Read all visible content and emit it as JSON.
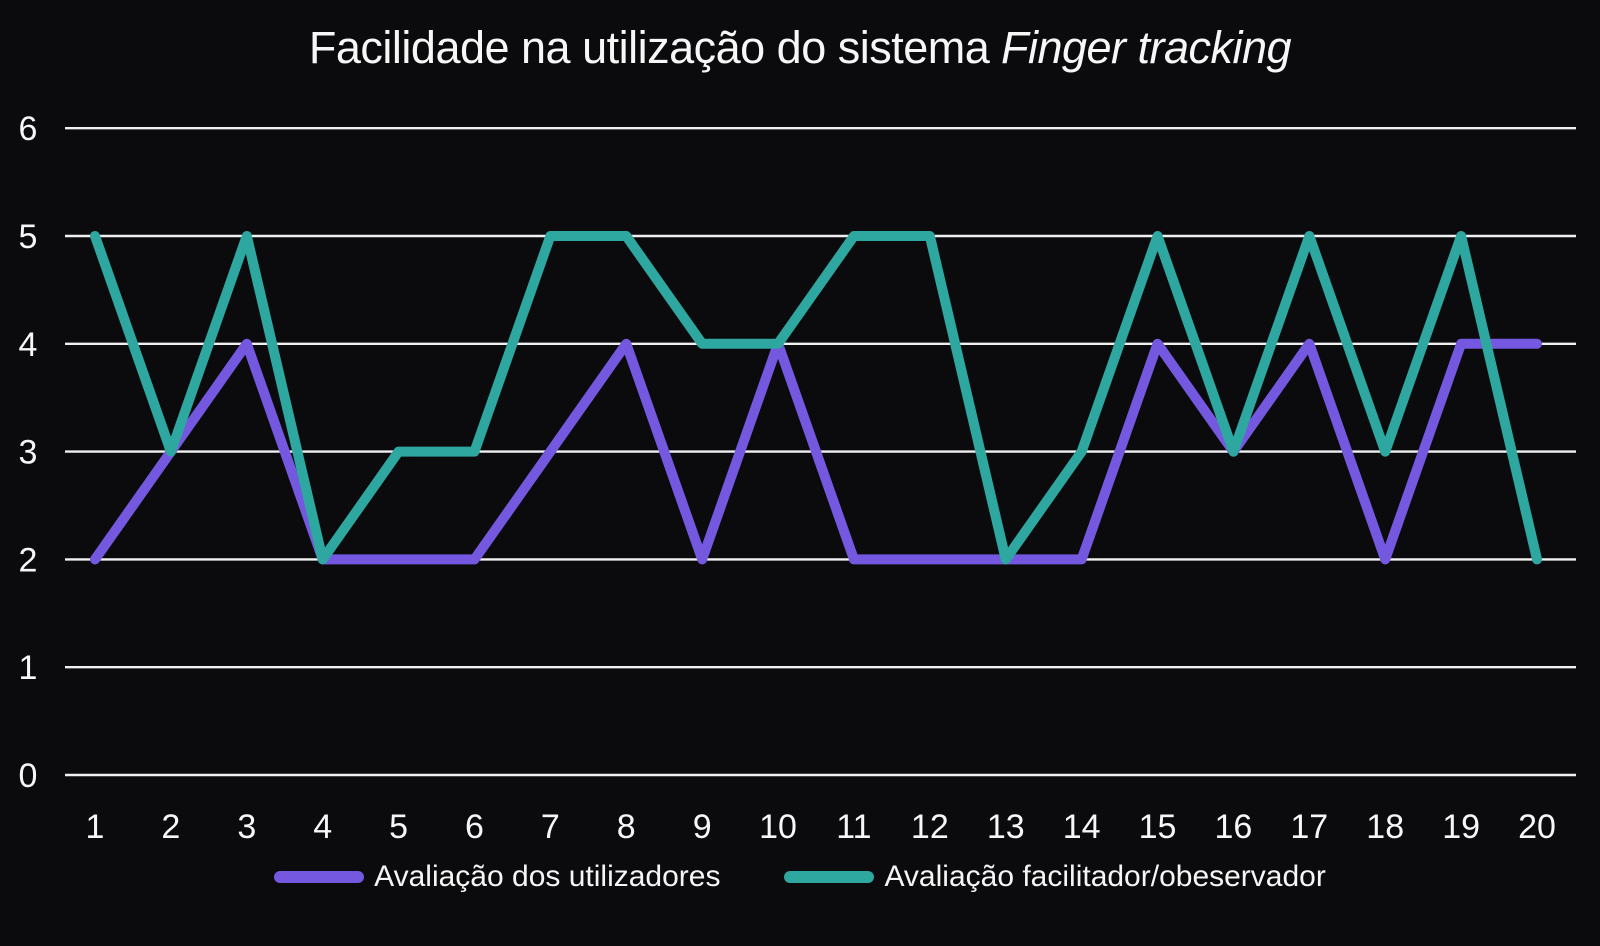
{
  "title": {
    "normal": "Facilidade na utilização do sistema",
    "italic": "Finger tracking"
  },
  "colors": {
    "background": "#0b0b0d",
    "gridline": "#f0f0f0",
    "text": "#f7f7f7",
    "series_purple": "#7458df",
    "series_teal": "#2ea7a1"
  },
  "chart_data": {
    "type": "line",
    "title": "Facilidade na utilização do sistema Finger tracking",
    "categories": [
      "1",
      "2",
      "3",
      "4",
      "5",
      "6",
      "7",
      "8",
      "9",
      "10",
      "11",
      "12",
      "13",
      "14",
      "15",
      "16",
      "17",
      "18",
      "19",
      "20"
    ],
    "series": [
      {
        "name": "Avaliação dos utilizadores",
        "color": "#7458df",
        "values": [
          2,
          3,
          4,
          2,
          2,
          2,
          3,
          4,
          2,
          4,
          2,
          2,
          2,
          2,
          4,
          3,
          4,
          2,
          4,
          4
        ]
      },
      {
        "name": "Avaliação facilitador/obeservador",
        "color": "#2ea7a1",
        "values": [
          5,
          3,
          5,
          2,
          3,
          3,
          5,
          5,
          4,
          4,
          5,
          5,
          2,
          3,
          5,
          3,
          5,
          3,
          5,
          2
        ]
      }
    ],
    "xlabel": "",
    "ylabel": "",
    "ylim": [
      0,
      6
    ],
    "y_ticks": [
      6,
      5,
      4,
      3,
      2,
      1,
      0
    ],
    "grid": true,
    "legend_position": "bottom"
  }
}
